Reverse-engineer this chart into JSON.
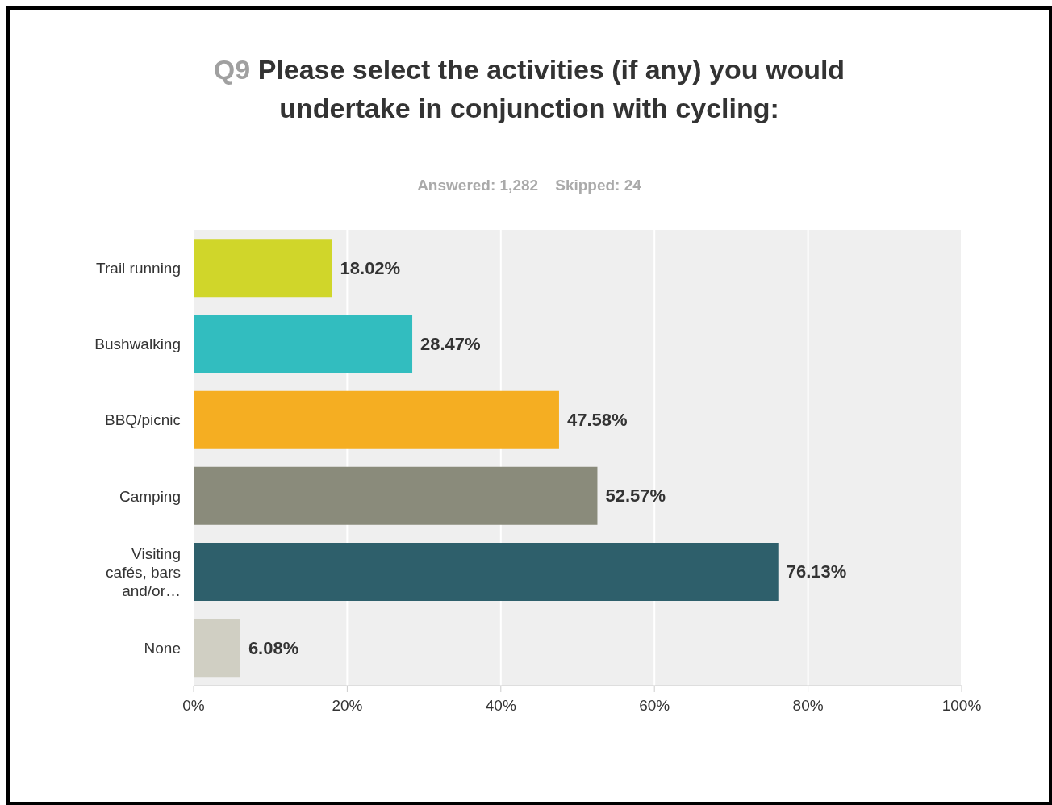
{
  "chart_data": {
    "type": "bar",
    "orientation": "horizontal",
    "title": "Q9 Please select the activities (if any) you would undertake in conjunction with cycling:",
    "subtitle": "Answered: 1,282    Skipped: 24",
    "categories": [
      "Trail running",
      "Bushwalking",
      "BBQ/picnic",
      "Camping",
      "Visiting cafés, bars and/or…",
      "None"
    ],
    "values": [
      18.02,
      28.47,
      47.58,
      52.57,
      76.13,
      6.08
    ],
    "value_labels": [
      "18.02%",
      "28.47%",
      "47.58%",
      "52.57%",
      "76.13%",
      "6.08%"
    ],
    "colors": [
      "#d0d62a",
      "#32bdbf",
      "#f5ae22",
      "#8a8b7b",
      "#2e5f6b",
      "#d0cfc3"
    ],
    "xlim": [
      0,
      100
    ],
    "xticks": [
      {
        "value": 0,
        "label": "0%"
      },
      {
        "value": 20,
        "label": "20%"
      },
      {
        "value": 40,
        "label": "40%"
      },
      {
        "value": 60,
        "label": "60%"
      },
      {
        "value": 80,
        "label": "80%"
      },
      {
        "value": 100,
        "label": "100%"
      }
    ],
    "grid": "x"
  }
}
